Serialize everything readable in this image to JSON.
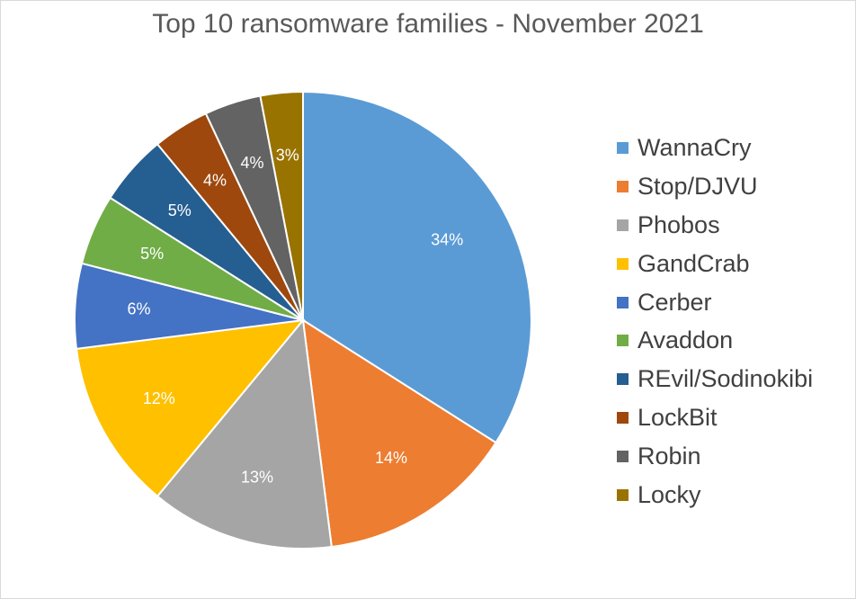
{
  "chart_data": {
    "type": "pie",
    "title": "Top 10 ransomware families - November 2021",
    "legend_position": "right",
    "slices": [
      {
        "label": "WannaCry",
        "value": 34,
        "display": "34%",
        "color": "#5b9bd5"
      },
      {
        "label": "Stop/DJVU",
        "value": 14,
        "display": "14%",
        "color": "#ed7d31"
      },
      {
        "label": "Phobos",
        "value": 13,
        "display": "13%",
        "color": "#a5a5a5"
      },
      {
        "label": "GandCrab",
        "value": 12,
        "display": "12%",
        "color": "#ffc000"
      },
      {
        "label": "Cerber",
        "value": 6,
        "display": "6%",
        "color": "#4472c4"
      },
      {
        "label": "Avaddon",
        "value": 5,
        "display": "5%",
        "color": "#70ad47"
      },
      {
        "label": "REvil/Sodinokibi",
        "value": 5,
        "display": "5%",
        "color": "#255e91"
      },
      {
        "label": "LockBit",
        "value": 4,
        "display": "4%",
        "color": "#9e480e"
      },
      {
        "label": "Robin",
        "value": 4,
        "display": "4%",
        "color": "#636363"
      },
      {
        "label": "Locky",
        "value": 3,
        "display": "3%",
        "color": "#997300"
      }
    ]
  }
}
